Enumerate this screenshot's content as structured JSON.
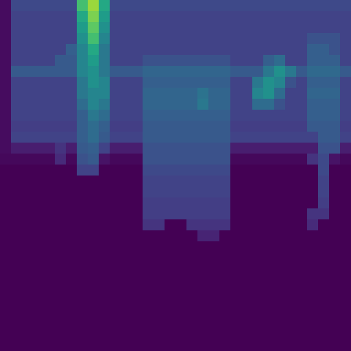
{
  "chart_data": {
    "type": "heatmap",
    "color": "Viridis",
    "grid": false,
    "tick_labels": false,
    "xlim": [
      -0.5,
      31.5
    ],
    "ylim": [
      31.5,
      -0.5
    ],
    "zlim": [
      0,
      1
    ],
    "cells": [
      [
        0.03,
        0.22,
        0.22,
        0.22,
        0.22,
        0.22,
        0.22,
        0.7,
        0.85,
        0.6,
        0.22,
        0.22,
        0.22,
        0.22,
        0.22,
        0.22,
        0.22,
        0.22,
        0.22,
        0.22,
        0.22,
        0.22,
        0.22,
        0.22,
        0.22,
        0.22,
        0.22,
        0.22,
        0.22,
        0.22,
        0.22,
        0.22
      ],
      [
        0.03,
        0.2,
        0.2,
        0.2,
        0.2,
        0.2,
        0.2,
        0.6,
        0.8,
        0.55,
        0.2,
        0.2,
        0.2,
        0.2,
        0.2,
        0.2,
        0.2,
        0.2,
        0.2,
        0.2,
        0.2,
        0.2,
        0.2,
        0.2,
        0.2,
        0.2,
        0.2,
        0.2,
        0.2,
        0.2,
        0.2,
        0.2
      ],
      [
        0.03,
        0.2,
        0.2,
        0.2,
        0.2,
        0.2,
        0.2,
        0.55,
        0.75,
        0.5,
        0.2,
        0.2,
        0.2,
        0.2,
        0.2,
        0.2,
        0.2,
        0.2,
        0.2,
        0.2,
        0.2,
        0.2,
        0.2,
        0.2,
        0.2,
        0.2,
        0.2,
        0.2,
        0.2,
        0.2,
        0.2,
        0.2
      ],
      [
        0.03,
        0.2,
        0.2,
        0.2,
        0.2,
        0.2,
        0.2,
        0.5,
        0.7,
        0.45,
        0.2,
        0.2,
        0.2,
        0.2,
        0.2,
        0.2,
        0.2,
        0.2,
        0.2,
        0.2,
        0.2,
        0.2,
        0.2,
        0.2,
        0.2,
        0.2,
        0.2,
        0.2,
        0.25,
        0.25,
        0.25,
        0.2
      ],
      [
        0.03,
        0.2,
        0.2,
        0.2,
        0.2,
        0.2,
        0.3,
        0.45,
        0.6,
        0.4,
        0.2,
        0.2,
        0.2,
        0.2,
        0.2,
        0.2,
        0.2,
        0.2,
        0.2,
        0.2,
        0.2,
        0.2,
        0.2,
        0.2,
        0.2,
        0.2,
        0.2,
        0.2,
        0.3,
        0.3,
        0.25,
        0.2
      ],
      [
        0.03,
        0.2,
        0.2,
        0.2,
        0.2,
        0.28,
        0.28,
        0.45,
        0.55,
        0.4,
        0.2,
        0.2,
        0.2,
        0.25,
        0.25,
        0.25,
        0.25,
        0.25,
        0.25,
        0.25,
        0.25,
        0.2,
        0.2,
        0.2,
        0.3,
        0.35,
        0.2,
        0.2,
        0.3,
        0.3,
        0.3,
        0.2
      ],
      [
        0.03,
        0.28,
        0.28,
        0.28,
        0.28,
        0.28,
        0.28,
        0.45,
        0.5,
        0.4,
        0.28,
        0.28,
        0.28,
        0.32,
        0.32,
        0.32,
        0.32,
        0.32,
        0.32,
        0.32,
        0.32,
        0.28,
        0.28,
        0.28,
        0.4,
        0.5,
        0.4,
        0.28,
        0.34,
        0.34,
        0.34,
        0.28
      ],
      [
        0.03,
        0.2,
        0.2,
        0.2,
        0.2,
        0.2,
        0.2,
        0.4,
        0.5,
        0.45,
        0.2,
        0.2,
        0.2,
        0.3,
        0.3,
        0.3,
        0.3,
        0.3,
        0.3,
        0.3,
        0.3,
        0.2,
        0.2,
        0.4,
        0.5,
        0.45,
        0.25,
        0.2,
        0.3,
        0.3,
        0.3,
        0.2
      ],
      [
        0.03,
        0.2,
        0.2,
        0.2,
        0.2,
        0.2,
        0.2,
        0.4,
        0.45,
        0.45,
        0.2,
        0.2,
        0.2,
        0.32,
        0.32,
        0.32,
        0.32,
        0.32,
        0.38,
        0.32,
        0.32,
        0.2,
        0.2,
        0.45,
        0.5,
        0.35,
        0.2,
        0.2,
        0.32,
        0.32,
        0.32,
        0.2
      ],
      [
        0.03,
        0.2,
        0.2,
        0.2,
        0.2,
        0.2,
        0.2,
        0.35,
        0.45,
        0.4,
        0.2,
        0.2,
        0.2,
        0.32,
        0.32,
        0.32,
        0.32,
        0.32,
        0.4,
        0.32,
        0.32,
        0.2,
        0.2,
        0.35,
        0.35,
        0.25,
        0.2,
        0.2,
        0.3,
        0.3,
        0.3,
        0.2
      ],
      [
        0.03,
        0.2,
        0.2,
        0.2,
        0.2,
        0.2,
        0.2,
        0.3,
        0.4,
        0.35,
        0.2,
        0.2,
        0.2,
        0.3,
        0.3,
        0.3,
        0.3,
        0.3,
        0.3,
        0.3,
        0.3,
        0.2,
        0.2,
        0.2,
        0.2,
        0.2,
        0.2,
        0.2,
        0.3,
        0.3,
        0.3,
        0.2
      ],
      [
        0.03,
        0.18,
        0.18,
        0.18,
        0.18,
        0.18,
        0.18,
        0.3,
        0.35,
        0.3,
        0.18,
        0.18,
        0.18,
        0.28,
        0.28,
        0.28,
        0.28,
        0.28,
        0.28,
        0.28,
        0.28,
        0.18,
        0.18,
        0.18,
        0.18,
        0.18,
        0.18,
        0.18,
        0.28,
        0.28,
        0.28,
        0.18
      ],
      [
        0.03,
        0.2,
        0.2,
        0.2,
        0.2,
        0.2,
        0.2,
        0.3,
        0.35,
        0.28,
        0.2,
        0.2,
        0.2,
        0.28,
        0.28,
        0.28,
        0.28,
        0.28,
        0.28,
        0.28,
        0.28,
        0.2,
        0.2,
        0.2,
        0.2,
        0.2,
        0.2,
        0.2,
        0.2,
        0.28,
        0.28,
        0.2
      ],
      [
        0.03,
        0.08,
        0.08,
        0.08,
        0.08,
        0.15,
        0.08,
        0.28,
        0.3,
        0.2,
        0.08,
        0.08,
        0.08,
        0.25,
        0.25,
        0.25,
        0.25,
        0.25,
        0.25,
        0.25,
        0.25,
        0.08,
        0.08,
        0.08,
        0.08,
        0.08,
        0.08,
        0.08,
        0.08,
        0.25,
        0.25,
        0.08
      ],
      [
        0.02,
        0.02,
        0.02,
        0.02,
        0.02,
        0.12,
        0.02,
        0.25,
        0.28,
        0.05,
        0.02,
        0.02,
        0.02,
        0.25,
        0.25,
        0.25,
        0.25,
        0.25,
        0.25,
        0.25,
        0.25,
        0.02,
        0.02,
        0.02,
        0.02,
        0.02,
        0.02,
        0.02,
        0.15,
        0.22,
        0.05,
        0.02
      ],
      [
        0,
        0,
        0,
        0,
        0,
        0,
        0,
        0.2,
        0.2,
        0,
        0,
        0,
        0,
        0.22,
        0.22,
        0.22,
        0.22,
        0.22,
        0.22,
        0.22,
        0.22,
        0,
        0,
        0,
        0,
        0,
        0,
        0,
        0,
        0.22,
        0,
        0
      ],
      [
        0,
        0,
        0,
        0,
        0,
        0,
        0,
        0,
        0,
        0,
        0,
        0,
        0,
        0.2,
        0.2,
        0.2,
        0.2,
        0.2,
        0.2,
        0.2,
        0.2,
        0,
        0,
        0,
        0,
        0,
        0,
        0,
        0,
        0.2,
        0,
        0
      ],
      [
        0,
        0,
        0,
        0,
        0,
        0,
        0,
        0,
        0,
        0,
        0,
        0,
        0,
        0.2,
        0.2,
        0.2,
        0.2,
        0.2,
        0.2,
        0.2,
        0.2,
        0,
        0,
        0,
        0,
        0,
        0,
        0,
        0,
        0.2,
        0,
        0
      ],
      [
        0,
        0,
        0,
        0,
        0,
        0,
        0,
        0,
        0,
        0,
        0,
        0,
        0,
        0.18,
        0.18,
        0.18,
        0.18,
        0.18,
        0.18,
        0.18,
        0.18,
        0,
        0,
        0,
        0,
        0,
        0,
        0,
        0,
        0.18,
        0,
        0
      ],
      [
        0,
        0,
        0,
        0,
        0,
        0,
        0,
        0,
        0,
        0,
        0,
        0,
        0,
        0.18,
        0.18,
        0.18,
        0.18,
        0.18,
        0.18,
        0.18,
        0.18,
        0,
        0,
        0,
        0,
        0,
        0,
        0,
        0.15,
        0.15,
        0,
        0
      ],
      [
        0,
        0,
        0,
        0,
        0,
        0,
        0,
        0,
        0,
        0,
        0,
        0,
        0,
        0.15,
        0.15,
        0,
        0,
        0.15,
        0.15,
        0.15,
        0.15,
        0,
        0,
        0,
        0,
        0,
        0,
        0,
        0.12,
        0,
        0,
        0
      ],
      [
        0,
        0,
        0,
        0,
        0,
        0,
        0,
        0,
        0,
        0,
        0,
        0,
        0,
        0,
        0,
        0,
        0,
        0,
        0.1,
        0.1,
        0,
        0,
        0,
        0,
        0,
        0,
        0,
        0,
        0,
        0,
        0,
        0
      ],
      [
        0,
        0,
        0,
        0,
        0,
        0,
        0,
        0,
        0,
        0,
        0,
        0,
        0,
        0,
        0,
        0,
        0,
        0,
        0,
        0,
        0,
        0,
        0,
        0,
        0,
        0,
        0,
        0,
        0,
        0,
        0,
        0
      ],
      [
        0,
        0,
        0,
        0,
        0,
        0,
        0,
        0,
        0,
        0,
        0,
        0,
        0,
        0,
        0,
        0,
        0,
        0,
        0,
        0,
        0,
        0,
        0,
        0,
        0,
        0,
        0,
        0,
        0,
        0,
        0,
        0
      ],
      [
        0,
        0,
        0,
        0,
        0,
        0,
        0,
        0,
        0,
        0,
        0,
        0,
        0,
        0,
        0,
        0,
        0,
        0,
        0,
        0,
        0,
        0,
        0,
        0,
        0,
        0,
        0,
        0,
        0,
        0,
        0,
        0
      ],
      [
        0,
        0,
        0,
        0,
        0,
        0,
        0,
        0,
        0,
        0,
        0,
        0,
        0,
        0,
        0,
        0,
        0,
        0,
        0,
        0,
        0,
        0,
        0,
        0,
        0,
        0,
        0,
        0,
        0,
        0,
        0,
        0
      ],
      [
        0,
        0,
        0,
        0,
        0,
        0,
        0,
        0,
        0,
        0,
        0,
        0,
        0,
        0,
        0,
        0,
        0,
        0,
        0,
        0,
        0,
        0,
        0,
        0,
        0,
        0,
        0,
        0,
        0,
        0,
        0,
        0
      ],
      [
        0,
        0,
        0,
        0,
        0,
        0,
        0,
        0,
        0,
        0,
        0,
        0,
        0,
        0,
        0,
        0,
        0,
        0,
        0,
        0,
        0,
        0,
        0,
        0,
        0,
        0,
        0,
        0,
        0,
        0,
        0,
        0
      ],
      [
        0,
        0,
        0,
        0,
        0,
        0,
        0,
        0,
        0,
        0,
        0,
        0,
        0,
        0,
        0,
        0,
        0,
        0,
        0,
        0,
        0,
        0,
        0,
        0,
        0,
        0,
        0,
        0,
        0,
        0,
        0,
        0
      ],
      [
        0,
        0,
        0,
        0,
        0,
        0,
        0,
        0,
        0,
        0,
        0,
        0,
        0,
        0,
        0,
        0,
        0,
        0,
        0,
        0,
        0,
        0,
        0,
        0,
        0,
        0,
        0,
        0,
        0,
        0,
        0,
        0
      ],
      [
        0,
        0,
        0,
        0,
        0,
        0,
        0,
        0,
        0,
        0,
        0,
        0,
        0,
        0,
        0,
        0,
        0,
        0,
        0,
        0,
        0,
        0,
        0,
        0,
        0,
        0,
        0,
        0,
        0,
        0,
        0,
        0
      ],
      [
        0,
        0,
        0,
        0,
        0,
        0,
        0,
        0,
        0,
        0,
        0,
        0,
        0,
        0,
        0,
        0,
        0,
        0,
        0,
        0,
        0,
        0,
        0,
        0,
        0,
        0,
        0,
        0,
        0,
        0,
        0,
        0
      ]
    ]
  }
}
